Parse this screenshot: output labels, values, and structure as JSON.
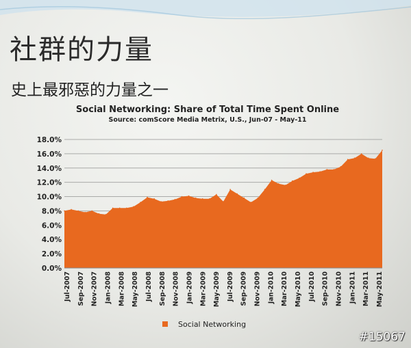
{
  "slide": {
    "title": "社群的力量",
    "subtitle": "史上最邪惡的力量之一"
  },
  "watermark": "#15067",
  "colors": {
    "area": "#e8691f",
    "grid": "#a9aaa8",
    "text": "#222222",
    "wave": "#bcd8e8"
  },
  "chart_data": {
    "type": "area",
    "title": "Social Networking: Share of Total Time Spent Online",
    "subtitle": "Source: comScore Media Metrix, U.S., Jun-07 - May-11",
    "ylabel": "",
    "xlabel": "",
    "ylim": [
      0,
      18
    ],
    "y_ticks": [
      "0.0%",
      "2.0%",
      "4.0%",
      "6.0%",
      "8.0%",
      "10.0%",
      "12.0%",
      "14.0%",
      "16.0%",
      "18.0%"
    ],
    "grid": true,
    "legend_position": "bottom-left",
    "x_tick_labels": [
      "Jul-2007",
      "Sep-2007",
      "Nov-2007",
      "Jan-2008",
      "Mar-2008",
      "May-2008",
      "Jul-2008",
      "Sep-2008",
      "Nov-2008",
      "Jan-2009",
      "Mar-2009",
      "May-2009",
      "Jul-2009",
      "Sep-2009",
      "Nov-2009",
      "Jan-2010",
      "Mar-2010",
      "May-2010",
      "Jul-2010",
      "Sep-2010",
      "Nov-2010",
      "Jan-2011",
      "Mar-2011",
      "May-2011"
    ],
    "series": [
      {
        "name": "Social Networking",
        "unit": "%",
        "values": [
          8.0,
          8.2,
          8.0,
          7.8,
          8.0,
          7.6,
          7.5,
          8.4,
          8.4,
          8.4,
          8.6,
          9.2,
          9.9,
          9.7,
          9.3,
          9.4,
          9.6,
          10.0,
          10.1,
          9.8,
          9.7,
          9.7,
          10.3,
          9.3,
          11.0,
          10.4,
          9.8,
          9.2,
          9.8,
          11.0,
          12.3,
          11.8,
          11.6,
          12.2,
          12.6,
          13.2,
          13.4,
          13.5,
          13.8,
          13.8,
          14.2,
          15.2,
          15.4,
          16.0,
          15.4,
          15.3,
          16.5
        ]
      }
    ]
  }
}
